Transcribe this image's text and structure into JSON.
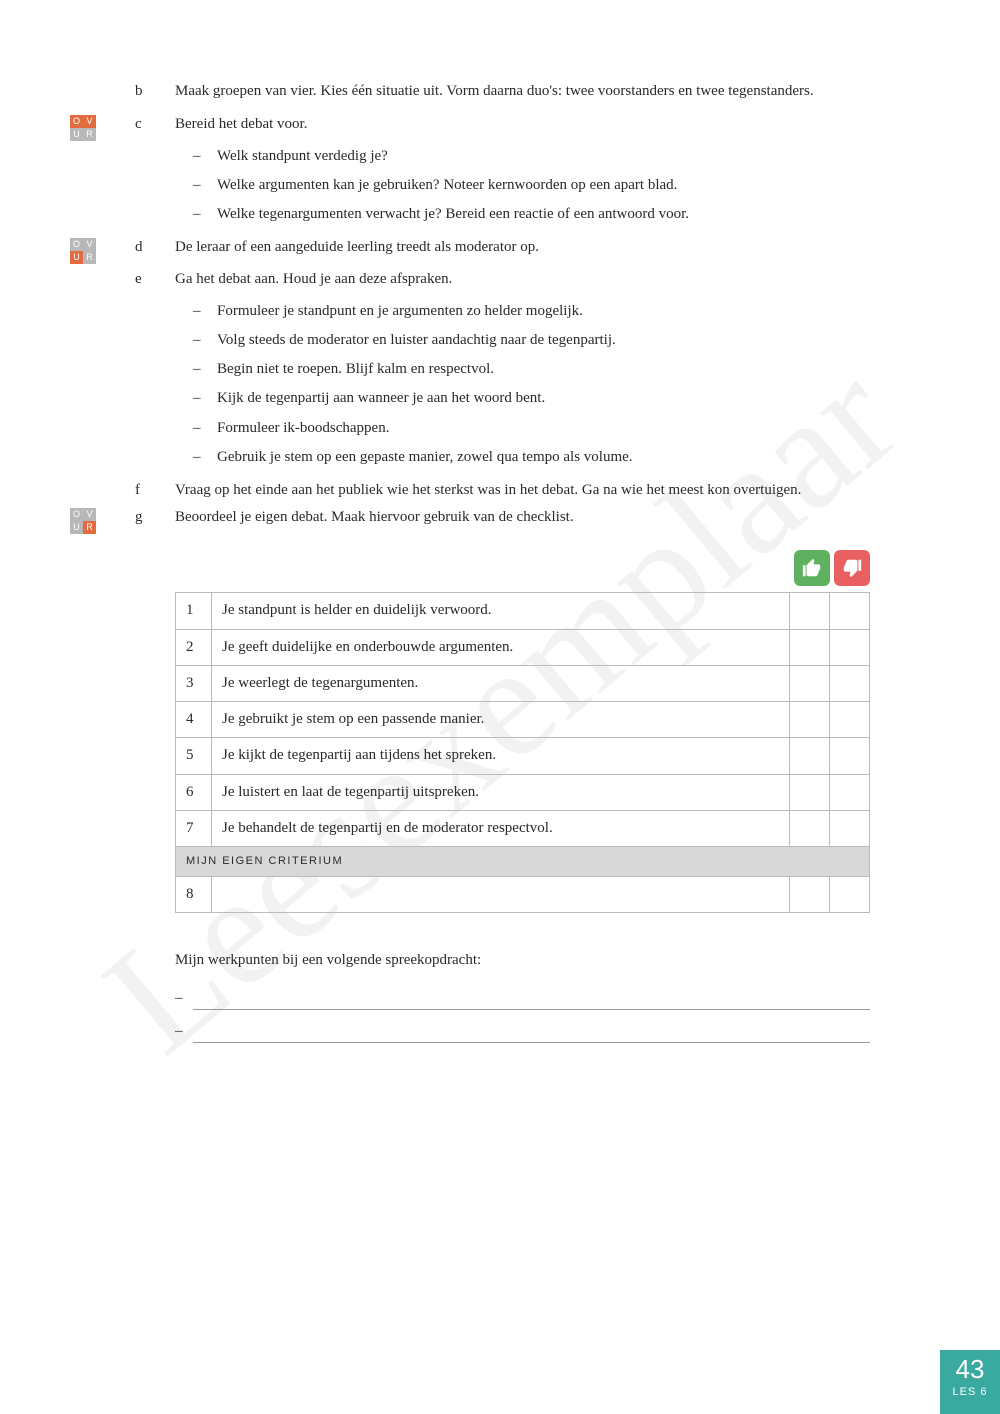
{
  "watermark": "Leesexemplaar",
  "items": [
    {
      "letter": "b",
      "text": "Maak groepen van vier. Kies één situatie uit. Vorm daarna duo's: twee voorstanders en twee tegenstanders.",
      "badge": null
    },
    {
      "letter": "c",
      "text": "Bereid het debat voor.",
      "badge": "var1",
      "bullets": [
        "Welk standpunt verdedig je?",
        "Welke argumenten kan je gebruiken? Noteer kernwoorden op een apart blad.",
        "Welke tegenargumenten verwacht je? Bereid een reactie of een antwoord voor."
      ]
    },
    {
      "letter": "d",
      "text": "De leraar of een aangeduide leerling treedt als moderator op.",
      "badge": "var2"
    },
    {
      "letter": "e",
      "text": "Ga het debat aan. Houd je aan deze afspraken.",
      "badge": null,
      "bullets": [
        "Formuleer je standpunt en je argumenten zo helder mogelijk.",
        "Volg steeds de moderator en luister aandachtig naar de tegenpartij.",
        "Begin niet te roepen. Blijf kalm en respectvol.",
        "Kijk de tegenpartij aan wanneer je aan het woord bent.",
        "Formuleer ik-boodschappen.",
        "Gebruik je stem op een gepaste manier, zowel qua tempo als volume."
      ]
    },
    {
      "letter": "f",
      "text": "Vraag op het einde aan het publiek wie het sterkst was in het debat. Ga na wie het meest kon overtuigen.",
      "badge": null
    },
    {
      "letter": "g",
      "text": "Beoordeel je eigen debat. Maak hiervoor gebruik van de checklist.",
      "badge": "var3"
    }
  ],
  "checklist": {
    "rows": [
      {
        "num": "1",
        "text": "Je standpunt is helder en duidelijk verwoord."
      },
      {
        "num": "2",
        "text": "Je geeft duidelijke en onderbouwde argumenten."
      },
      {
        "num": "3",
        "text": "Je weerlegt de tegenargumenten."
      },
      {
        "num": "4",
        "text": "Je gebruikt je stem op een passende manier."
      },
      {
        "num": "5",
        "text": "Je kijkt de tegenpartij aan tijdens het spreken."
      },
      {
        "num": "6",
        "text": "Je luistert en laat de tegenpartij uitspreken."
      },
      {
        "num": "7",
        "text": "Je behandelt de tegenpartij en de moderator respectvol."
      }
    ],
    "own_criterium_label": "MIJN EIGEN CRITERIUM",
    "own_row_num": "8"
  },
  "workpoints_title": "Mijn werkpunten bij een volgende spreekopdracht:",
  "footer": {
    "page": "43",
    "lesson": "LES 6"
  },
  "colors": {
    "accent_orange": "#e26b3f",
    "badge_grey": "#b8b8b8",
    "thumb_up": "#5fb05f",
    "thumb_down": "#e86060",
    "footer_bg": "#3aa9a0",
    "table_header_bg": "#d8d8d8",
    "border": "#bbbbbb"
  }
}
